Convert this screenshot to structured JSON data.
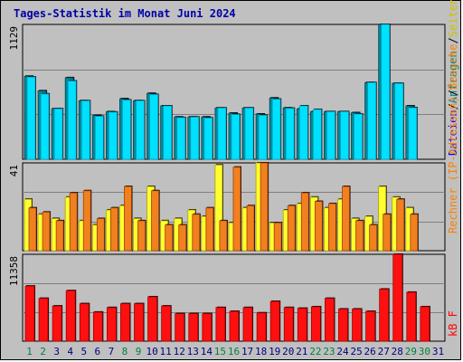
{
  "title": "Tages-Statistik im Monat Juni 2024",
  "colors": {
    "panel_bg": "#c0c0c0",
    "grid": "#7f7f7f",
    "weekday": "#000080",
    "weekend": "#008040",
    "hits": "#008080",
    "files": "#0000ff",
    "sites": "#ff8000",
    "visits": "#ff8000",
    "pages": "#ffff00",
    "kbytes": "#ff0000",
    "bar_cyan": "#00e0ff",
    "bar_cyan_dark": "#00a0c0",
    "bar_orange": "#f08020",
    "bar_yellow": "#ffff30",
    "bar_red": "#ff1010"
  },
  "chart_data": [
    {
      "type": "bar",
      "panel": "hits-files",
      "ymax_label": "1129",
      "ylim": [
        0,
        1129
      ],
      "categories": [
        "1",
        "2",
        "3",
        "4",
        "5",
        "6",
        "7",
        "8",
        "9",
        "10",
        "11",
        "12",
        "13",
        "14",
        "15",
        "16",
        "17",
        "18",
        "19",
        "20",
        "21",
        "22",
        "23",
        "24",
        "25",
        "26",
        "27",
        "28",
        "29",
        "30",
        "31"
      ],
      "series": [
        {
          "name": "Anfragen",
          "values": [
            695,
            573,
            423,
            683,
            490,
            367,
            398,
            507,
            490,
            552,
            447,
            354,
            354,
            354,
            429,
            386,
            429,
            379,
            513,
            430,
            421,
            398,
            398,
            398,
            390,
            642,
            1129,
            635,
            447,
            null,
            null
          ]
        },
        {
          "name": "Dateien",
          "values": [
            688,
            547,
            423,
            655,
            489,
            360,
            395,
            496,
            489,
            542,
            447,
            349,
            353,
            346,
            429,
            375,
            429,
            368,
            503,
            427,
            447,
            417,
            398,
            398,
            379,
            642,
            1129,
            635,
            432,
            null,
            null
          ]
        }
      ],
      "legend": [
        "Anfragen",
        "Dateien"
      ]
    },
    {
      "type": "bar",
      "panel": "pages-visits-sites",
      "ymax_label": "41",
      "ylim": [
        0,
        41
      ],
      "categories": [
        "1",
        "2",
        "3",
        "4",
        "5",
        "6",
        "7",
        "8",
        "9",
        "10",
        "11",
        "12",
        "13",
        "14",
        "15",
        "16",
        "17",
        "18",
        "19",
        "20",
        "21",
        "22",
        "23",
        "24",
        "25",
        "26",
        "27",
        "28",
        "29",
        "30",
        "31"
      ],
      "series": [
        {
          "name": "Seiten",
          "values": [
            24,
            17,
            15,
            25,
            14,
            12,
            19,
            21,
            15,
            30,
            14,
            15,
            19,
            16,
            40,
            13,
            20,
            41,
            13,
            19,
            22,
            25,
            20,
            24,
            15,
            16,
            30,
            25,
            20,
            null,
            null
          ]
        },
        {
          "name": "Besuche",
          "values": [
            20,
            18,
            14,
            27,
            28,
            15,
            20,
            30,
            14,
            28,
            12,
            12,
            17,
            20,
            14,
            39,
            21,
            41,
            13,
            21,
            27,
            23,
            22,
            30,
            14,
            12,
            17,
            24,
            17,
            null,
            null
          ]
        },
        {
          "name": "Rechner (IP-Adressen)",
          "values": [
            20,
            18,
            14,
            27,
            28,
            15,
            20,
            30,
            14,
            28,
            12,
            12,
            17,
            20,
            14,
            39,
            21,
            41,
            13,
            21,
            27,
            23,
            22,
            30,
            14,
            12,
            17,
            24,
            17,
            null,
            null
          ]
        }
      ],
      "legend": [
        "Rechner (IP-Adressen)",
        "Besuche",
        "Seiten"
      ]
    },
    {
      "type": "bar",
      "panel": "kbytes",
      "ymax_label": "11358",
      "ylim": [
        0,
        11358
      ],
      "categories": [
        "1",
        "2",
        "3",
        "4",
        "5",
        "6",
        "7",
        "8",
        "9",
        "10",
        "11",
        "12",
        "13",
        "14",
        "15",
        "16",
        "17",
        "18",
        "19",
        "20",
        "21",
        "22",
        "23",
        "24",
        "25",
        "26",
        "27",
        "28",
        "29",
        "30",
        "31"
      ],
      "series": [
        {
          "name": "kB F",
          "values": [
            7200,
            5600,
            4600,
            6600,
            4900,
            3800,
            4400,
            4900,
            4900,
            5800,
            4600,
            3600,
            3600,
            3600,
            4400,
            3900,
            4400,
            3700,
            5200,
            4400,
            4300,
            4500,
            5600,
            4200,
            4200,
            3900,
            6800,
            11358,
            6400,
            4500,
            null
          ]
        }
      ],
      "legend": [
        "kB F"
      ]
    }
  ],
  "days": [
    "1",
    "2",
    "3",
    "4",
    "5",
    "6",
    "7",
    "8",
    "9",
    "10",
    "11",
    "12",
    "13",
    "14",
    "15",
    "16",
    "17",
    "18",
    "19",
    "20",
    "21",
    "22",
    "23",
    "24",
    "25",
    "26",
    "27",
    "28",
    "29",
    "30",
    "31"
  ],
  "weekend_days": [
    "1",
    "2",
    "8",
    "9",
    "15",
    "16",
    "22",
    "23",
    "29",
    "30"
  ],
  "legend_top": {
    "files": "Dateien",
    "sep": "/",
    "hits": "Anfragen"
  },
  "legend_mid": {
    "sites": "Rechner (IP-Adressen)",
    "sep1": "/",
    "visits": "Besuche",
    "sep2": "/",
    "pages": "Seiten"
  },
  "legend_bot": {
    "kbytes": "kB F"
  }
}
